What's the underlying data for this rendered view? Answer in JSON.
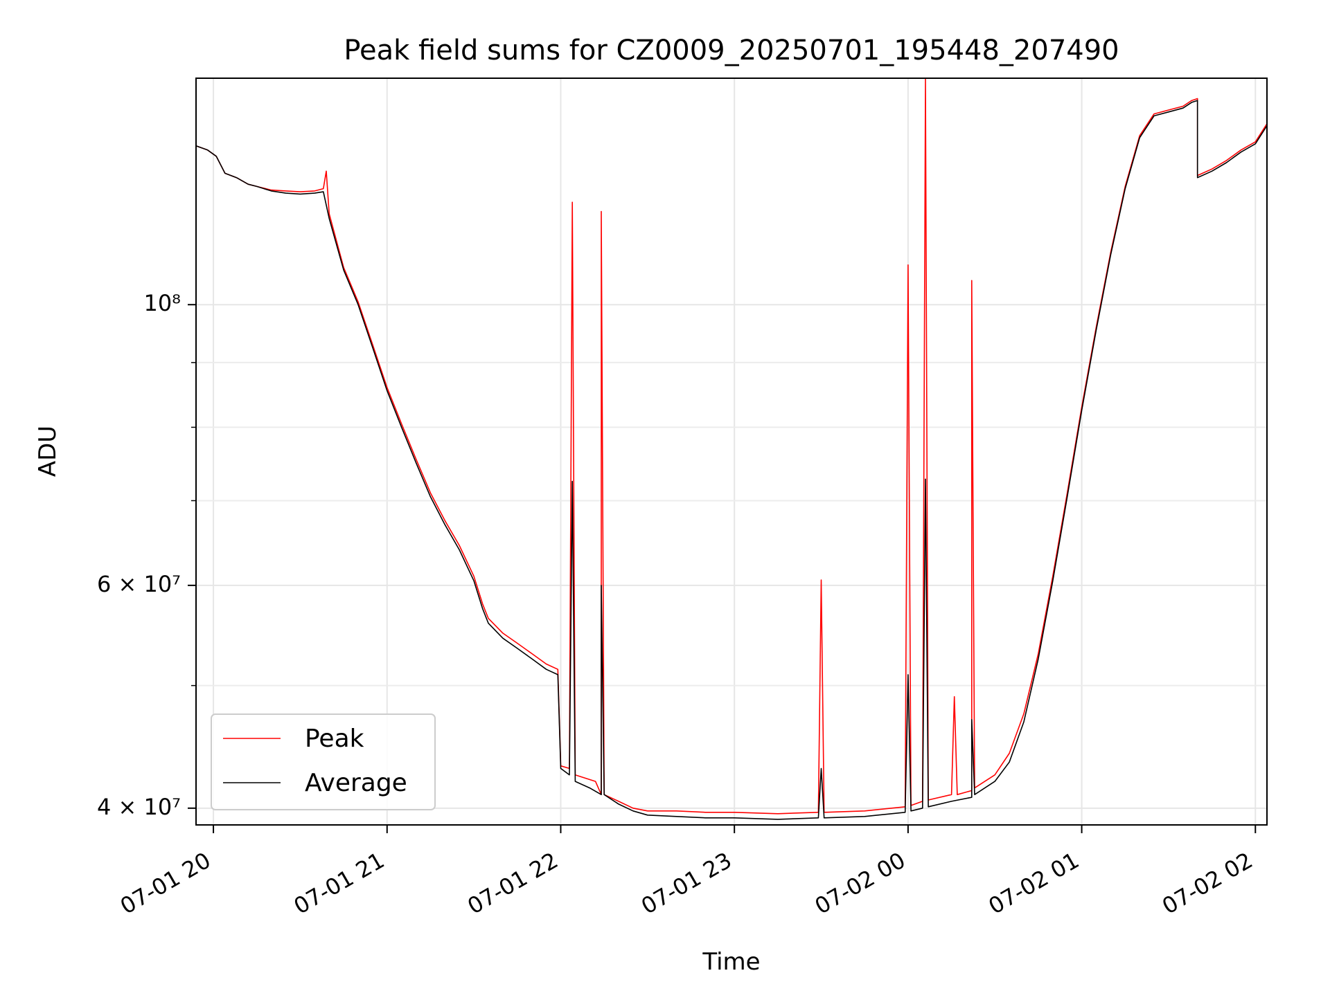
{
  "chart_data": {
    "type": "line",
    "title": "Peak field sums for CZ0009_20250701_195448_207490",
    "xlabel": "Time",
    "ylabel": "ADU",
    "yscale": "log",
    "xlim": [
      "2025-07-01 19:54",
      "2025-07-02 02:04"
    ],
    "ylim": [
      38800000,
      151000000
    ],
    "x_ticks": [
      {
        "value": "2025-07-01 20:00",
        "label": "07-01 20"
      },
      {
        "value": "2025-07-01 21:00",
        "label": "07-01 21"
      },
      {
        "value": "2025-07-01 22:00",
        "label": "07-01 22"
      },
      {
        "value": "2025-07-01 23:00",
        "label": "07-01 23"
      },
      {
        "value": "2025-07-02 00:00",
        "label": "07-02 00"
      },
      {
        "value": "2025-07-02 01:00",
        "label": "07-02 01"
      },
      {
        "value": "2025-07-02 02:00",
        "label": "07-02 02"
      }
    ],
    "y_ticks": [
      {
        "value": 40000000,
        "label": "4 × 10⁷"
      },
      {
        "value": 60000000,
        "label": "6 × 10⁷"
      },
      {
        "value": 100000000,
        "label": "10⁸"
      }
    ],
    "y_minor_ticks": [
      50000000,
      70000000,
      80000000,
      90000000
    ],
    "grid": true,
    "legend_position": "lower-left",
    "series": [
      {
        "name": "Peak",
        "color": "#ff0000",
        "points": [
          [
            "2025-07-01 19:54",
            133500000
          ],
          [
            "2025-07-01 19:58",
            132500000
          ],
          [
            "2025-07-01 20:01",
            131000000
          ],
          [
            "2025-07-01 20:04",
            127000000
          ],
          [
            "2025-07-01 20:08",
            126000000
          ],
          [
            "2025-07-01 20:12",
            124500000
          ],
          [
            "2025-07-01 20:15",
            124000000
          ],
          [
            "2025-07-01 20:20",
            123200000
          ],
          [
            "2025-07-01 20:25",
            123000000
          ],
          [
            "2025-07-01 20:30",
            122800000
          ],
          [
            "2025-07-01 20:35",
            123000000
          ],
          [
            "2025-07-01 20:38",
            123500000
          ],
          [
            "2025-07-01 20:39",
            127500000
          ],
          [
            "2025-07-01 20:40",
            118000000
          ],
          [
            "2025-07-01 20:45",
            107000000
          ],
          [
            "2025-07-01 20:50",
            100500000
          ],
          [
            "2025-07-01 20:55",
            93000000
          ],
          [
            "2025-07-01 21:00",
            86000000
          ],
          [
            "2025-07-01 21:05",
            80500000
          ],
          [
            "2025-07-01 21:10",
            75500000
          ],
          [
            "2025-07-01 21:15",
            71000000
          ],
          [
            "2025-07-01 21:20",
            67500000
          ],
          [
            "2025-07-01 21:25",
            64500000
          ],
          [
            "2025-07-01 21:30",
            61000000
          ],
          [
            "2025-07-01 21:33",
            58000000
          ],
          [
            "2025-07-01 21:35",
            56500000
          ],
          [
            "2025-07-01 21:40",
            55000000
          ],
          [
            "2025-07-01 21:45",
            54000000
          ],
          [
            "2025-07-01 21:50",
            53000000
          ],
          [
            "2025-07-01 21:55",
            52000000
          ],
          [
            "2025-07-01 21:59",
            51500000
          ],
          [
            "2025-07-01 22:00",
            43200000
          ],
          [
            "2025-07-01 22:03",
            43000000
          ],
          [
            "2025-07-01 22:04",
            120500000
          ],
          [
            "2025-07-01 22:05",
            42500000
          ],
          [
            "2025-07-01 22:12",
            42000000
          ],
          [
            "2025-07-01 22:14",
            41000000
          ],
          [
            "2025-07-01 22:14",
            118500000
          ],
          [
            "2025-07-01 22:15",
            41000000
          ],
          [
            "2025-07-01 22:20",
            40500000
          ],
          [
            "2025-07-01 22:25",
            40000000
          ],
          [
            "2025-07-01 22:30",
            39800000
          ],
          [
            "2025-07-01 22:40",
            39800000
          ],
          [
            "2025-07-01 22:50",
            39700000
          ],
          [
            "2025-07-01 23:00",
            39700000
          ],
          [
            "2025-07-01 23:15",
            39600000
          ],
          [
            "2025-07-01 23:29",
            39700000
          ],
          [
            "2025-07-01 23:30",
            60600000
          ],
          [
            "2025-07-01 23:31",
            39700000
          ],
          [
            "2025-07-01 23:45",
            39800000
          ],
          [
            "2025-07-01 23:59",
            40100000
          ],
          [
            "2025-07-02 00:00",
            107500000
          ],
          [
            "2025-07-02 00:01",
            40200000
          ],
          [
            "2025-07-02 00:05",
            40500000
          ],
          [
            "2025-07-02 00:06",
            151000000
          ],
          [
            "2025-07-02 00:07",
            40600000
          ],
          [
            "2025-07-02 00:15",
            41000000
          ],
          [
            "2025-07-02 00:16",
            49000000
          ],
          [
            "2025-07-02 00:17",
            41000000
          ],
          [
            "2025-07-02 00:22",
            41300000
          ],
          [
            "2025-07-02 00:22",
            104500000
          ],
          [
            "2025-07-02 00:23",
            41500000
          ],
          [
            "2025-07-02 00:30",
            42500000
          ],
          [
            "2025-07-02 00:35",
            44200000
          ],
          [
            "2025-07-02 00:40",
            47500000
          ],
          [
            "2025-07-02 00:45",
            53000000
          ],
          [
            "2025-07-02 00:50",
            61000000
          ],
          [
            "2025-07-02 00:55",
            71000000
          ],
          [
            "2025-07-02 01:00",
            83000000
          ],
          [
            "2025-07-02 01:05",
            96000000
          ],
          [
            "2025-07-02 01:10",
            110000000
          ],
          [
            "2025-07-02 01:15",
            124000000
          ],
          [
            "2025-07-02 01:20",
            136000000
          ],
          [
            "2025-07-02 01:25",
            141500000
          ],
          [
            "2025-07-02 01:30",
            142500000
          ],
          [
            "2025-07-02 01:35",
            143500000
          ],
          [
            "2025-07-02 01:38",
            145000000
          ],
          [
            "2025-07-02 01:40",
            145500000
          ],
          [
            "2025-07-02 01:40",
            126500000
          ],
          [
            "2025-07-02 01:45",
            128000000
          ],
          [
            "2025-07-02 01:50",
            130000000
          ],
          [
            "2025-07-02 01:55",
            132500000
          ],
          [
            "2025-07-02 02:00",
            134500000
          ],
          [
            "2025-07-02 02:04",
            139000000
          ]
        ]
      },
      {
        "name": "Average",
        "color": "#000000",
        "points": [
          [
            "2025-07-01 19:54",
            133500000
          ],
          [
            "2025-07-01 19:58",
            132500000
          ],
          [
            "2025-07-01 20:01",
            131000000
          ],
          [
            "2025-07-01 20:04",
            127000000
          ],
          [
            "2025-07-01 20:08",
            126000000
          ],
          [
            "2025-07-01 20:12",
            124500000
          ],
          [
            "2025-07-01 20:15",
            124000000
          ],
          [
            "2025-07-01 20:20",
            123000000
          ],
          [
            "2025-07-01 20:25",
            122500000
          ],
          [
            "2025-07-01 20:30",
            122300000
          ],
          [
            "2025-07-01 20:35",
            122500000
          ],
          [
            "2025-07-01 20:38",
            122800000
          ],
          [
            "2025-07-01 20:40",
            117000000
          ],
          [
            "2025-07-01 20:45",
            106500000
          ],
          [
            "2025-07-01 20:50",
            100000000
          ],
          [
            "2025-07-01 20:55",
            92500000
          ],
          [
            "2025-07-01 21:00",
            85500000
          ],
          [
            "2025-07-01 21:05",
            80000000
          ],
          [
            "2025-07-01 21:10",
            75000000
          ],
          [
            "2025-07-01 21:15",
            70500000
          ],
          [
            "2025-07-01 21:20",
            67000000
          ],
          [
            "2025-07-01 21:25",
            64000000
          ],
          [
            "2025-07-01 21:30",
            60500000
          ],
          [
            "2025-07-01 21:33",
            57500000
          ],
          [
            "2025-07-01 21:35",
            56000000
          ],
          [
            "2025-07-01 21:40",
            54500000
          ],
          [
            "2025-07-01 21:45",
            53500000
          ],
          [
            "2025-07-01 21:50",
            52500000
          ],
          [
            "2025-07-01 21:55",
            51500000
          ],
          [
            "2025-07-01 21:59",
            51000000
          ],
          [
            "2025-07-01 22:00",
            43000000
          ],
          [
            "2025-07-01 22:03",
            42500000
          ],
          [
            "2025-07-01 22:04",
            72500000
          ],
          [
            "2025-07-01 22:05",
            42000000
          ],
          [
            "2025-07-01 22:10",
            41500000
          ],
          [
            "2025-07-01 22:14",
            41000000
          ],
          [
            "2025-07-01 22:14",
            60000000
          ],
          [
            "2025-07-01 22:15",
            41000000
          ],
          [
            "2025-07-01 22:20",
            40300000
          ],
          [
            "2025-07-01 22:25",
            39800000
          ],
          [
            "2025-07-01 22:30",
            39500000
          ],
          [
            "2025-07-01 22:40",
            39400000
          ],
          [
            "2025-07-01 22:50",
            39300000
          ],
          [
            "2025-07-01 23:00",
            39300000
          ],
          [
            "2025-07-01 23:15",
            39200000
          ],
          [
            "2025-07-01 23:29",
            39300000
          ],
          [
            "2025-07-01 23:30",
            43000000
          ],
          [
            "2025-07-01 23:31",
            39300000
          ],
          [
            "2025-07-01 23:45",
            39400000
          ],
          [
            "2025-07-01 23:59",
            39700000
          ],
          [
            "2025-07-02 00:00",
            51000000
          ],
          [
            "2025-07-02 00:01",
            39800000
          ],
          [
            "2025-07-02 00:05",
            40000000
          ],
          [
            "2025-07-02 00:06",
            72800000
          ],
          [
            "2025-07-02 00:07",
            40100000
          ],
          [
            "2025-07-02 00:15",
            40500000
          ],
          [
            "2025-07-02 00:22",
            40800000
          ],
          [
            "2025-07-02 00:22",
            47000000
          ],
          [
            "2025-07-02 00:23",
            41000000
          ],
          [
            "2025-07-02 00:30",
            42000000
          ],
          [
            "2025-07-02 00:35",
            43500000
          ],
          [
            "2025-07-02 00:40",
            46800000
          ],
          [
            "2025-07-02 00:45",
            52500000
          ],
          [
            "2025-07-02 00:50",
            60500000
          ],
          [
            "2025-07-02 00:55",
            70500000
          ],
          [
            "2025-07-02 01:00",
            82500000
          ],
          [
            "2025-07-02 01:05",
            95500000
          ],
          [
            "2025-07-02 01:10",
            109500000
          ],
          [
            "2025-07-02 01:15",
            123500000
          ],
          [
            "2025-07-02 01:20",
            135500000
          ],
          [
            "2025-07-02 01:25",
            141000000
          ],
          [
            "2025-07-02 01:30",
            142000000
          ],
          [
            "2025-07-02 01:35",
            143000000
          ],
          [
            "2025-07-02 01:38",
            144500000
          ],
          [
            "2025-07-02 01:40",
            145000000
          ],
          [
            "2025-07-02 01:40",
            126000000
          ],
          [
            "2025-07-02 01:45",
            127500000
          ],
          [
            "2025-07-02 01:50",
            129500000
          ],
          [
            "2025-07-02 01:55",
            132000000
          ],
          [
            "2025-07-02 02:00",
            134000000
          ],
          [
            "2025-07-02 02:04",
            138500000
          ]
        ]
      }
    ]
  }
}
